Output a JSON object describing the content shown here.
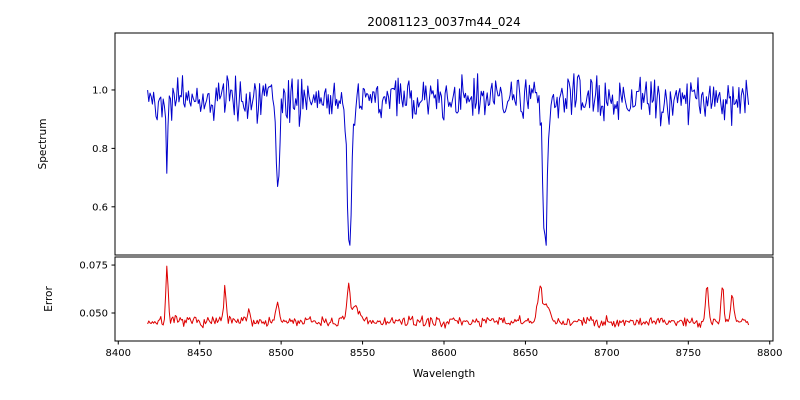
{
  "figure": {
    "background": "#ffffff"
  },
  "chart_data": [
    {
      "type": "line",
      "title": "20081123_0037m44_024",
      "ylabel": "Spectrum",
      "legend": null,
      "color": "#0000cc",
      "x_range": [
        8418,
        8787
      ],
      "xlim": [
        8398,
        8802
      ],
      "ylim": [
        0.435,
        1.195
      ],
      "ytick_values": [
        0.6,
        0.8,
        1.0
      ],
      "ytick_labels": [
        "0.6",
        "0.8",
        "1.0"
      ],
      "n_points": 500,
      "baseline": 0.97,
      "noise_amplitude": 0.11,
      "grid": false,
      "absorption_lines": [
        {
          "center": 8430.0,
          "depth": 0.2,
          "width": 0.9
        },
        {
          "center": 8498.0,
          "depth": 0.32,
          "width": 1.6
        },
        {
          "center": 8542.1,
          "depth": 0.52,
          "width": 2.2
        },
        {
          "center": 8662.1,
          "depth": 0.5,
          "width": 2.0
        }
      ]
    },
    {
      "type": "line",
      "title": "",
      "ylabel": "Error",
      "xlabel": "Wavelength",
      "color": "#dd0000",
      "x_range": [
        8418,
        8787
      ],
      "xlim": [
        8398,
        8802
      ],
      "ylim": [
        0.0354,
        0.0792
      ],
      "ytick_values": [
        0.05,
        0.075
      ],
      "ytick_labels": [
        "0.050",
        "0.075"
      ],
      "xtick_values": [
        8400,
        8450,
        8500,
        8550,
        8600,
        8650,
        8700,
        8750,
        8800
      ],
      "xtick_labels": [
        "8400",
        "8450",
        "8500",
        "8550",
        "8600",
        "8650",
        "8700",
        "8750",
        "8800"
      ],
      "n_points": 500,
      "baseline": 0.0455,
      "noise_amplitude": 0.004,
      "grid": false,
      "spikes": [
        {
          "center": 8430.0,
          "height": 0.0292,
          "width": 1.0
        },
        {
          "center": 8465.5,
          "height": 0.0185,
          "width": 1.0
        },
        {
          "center": 8480.0,
          "height": 0.006,
          "width": 1.2
        },
        {
          "center": 8497.5,
          "height": 0.008,
          "width": 1.6
        },
        {
          "center": 8541.5,
          "height": 0.0185,
          "width": 1.6
        },
        {
          "center": 8546.0,
          "height": 0.006,
          "width": 3.0
        },
        {
          "center": 8659.0,
          "height": 0.017,
          "width": 2.2
        },
        {
          "center": 8663.5,
          "height": 0.008,
          "width": 2.0
        },
        {
          "center": 8761.5,
          "height": 0.017,
          "width": 1.4
        },
        {
          "center": 8771.0,
          "height": 0.019,
          "width": 1.2
        },
        {
          "center": 8777.0,
          "height": 0.014,
          "width": 1.2
        }
      ]
    }
  ]
}
